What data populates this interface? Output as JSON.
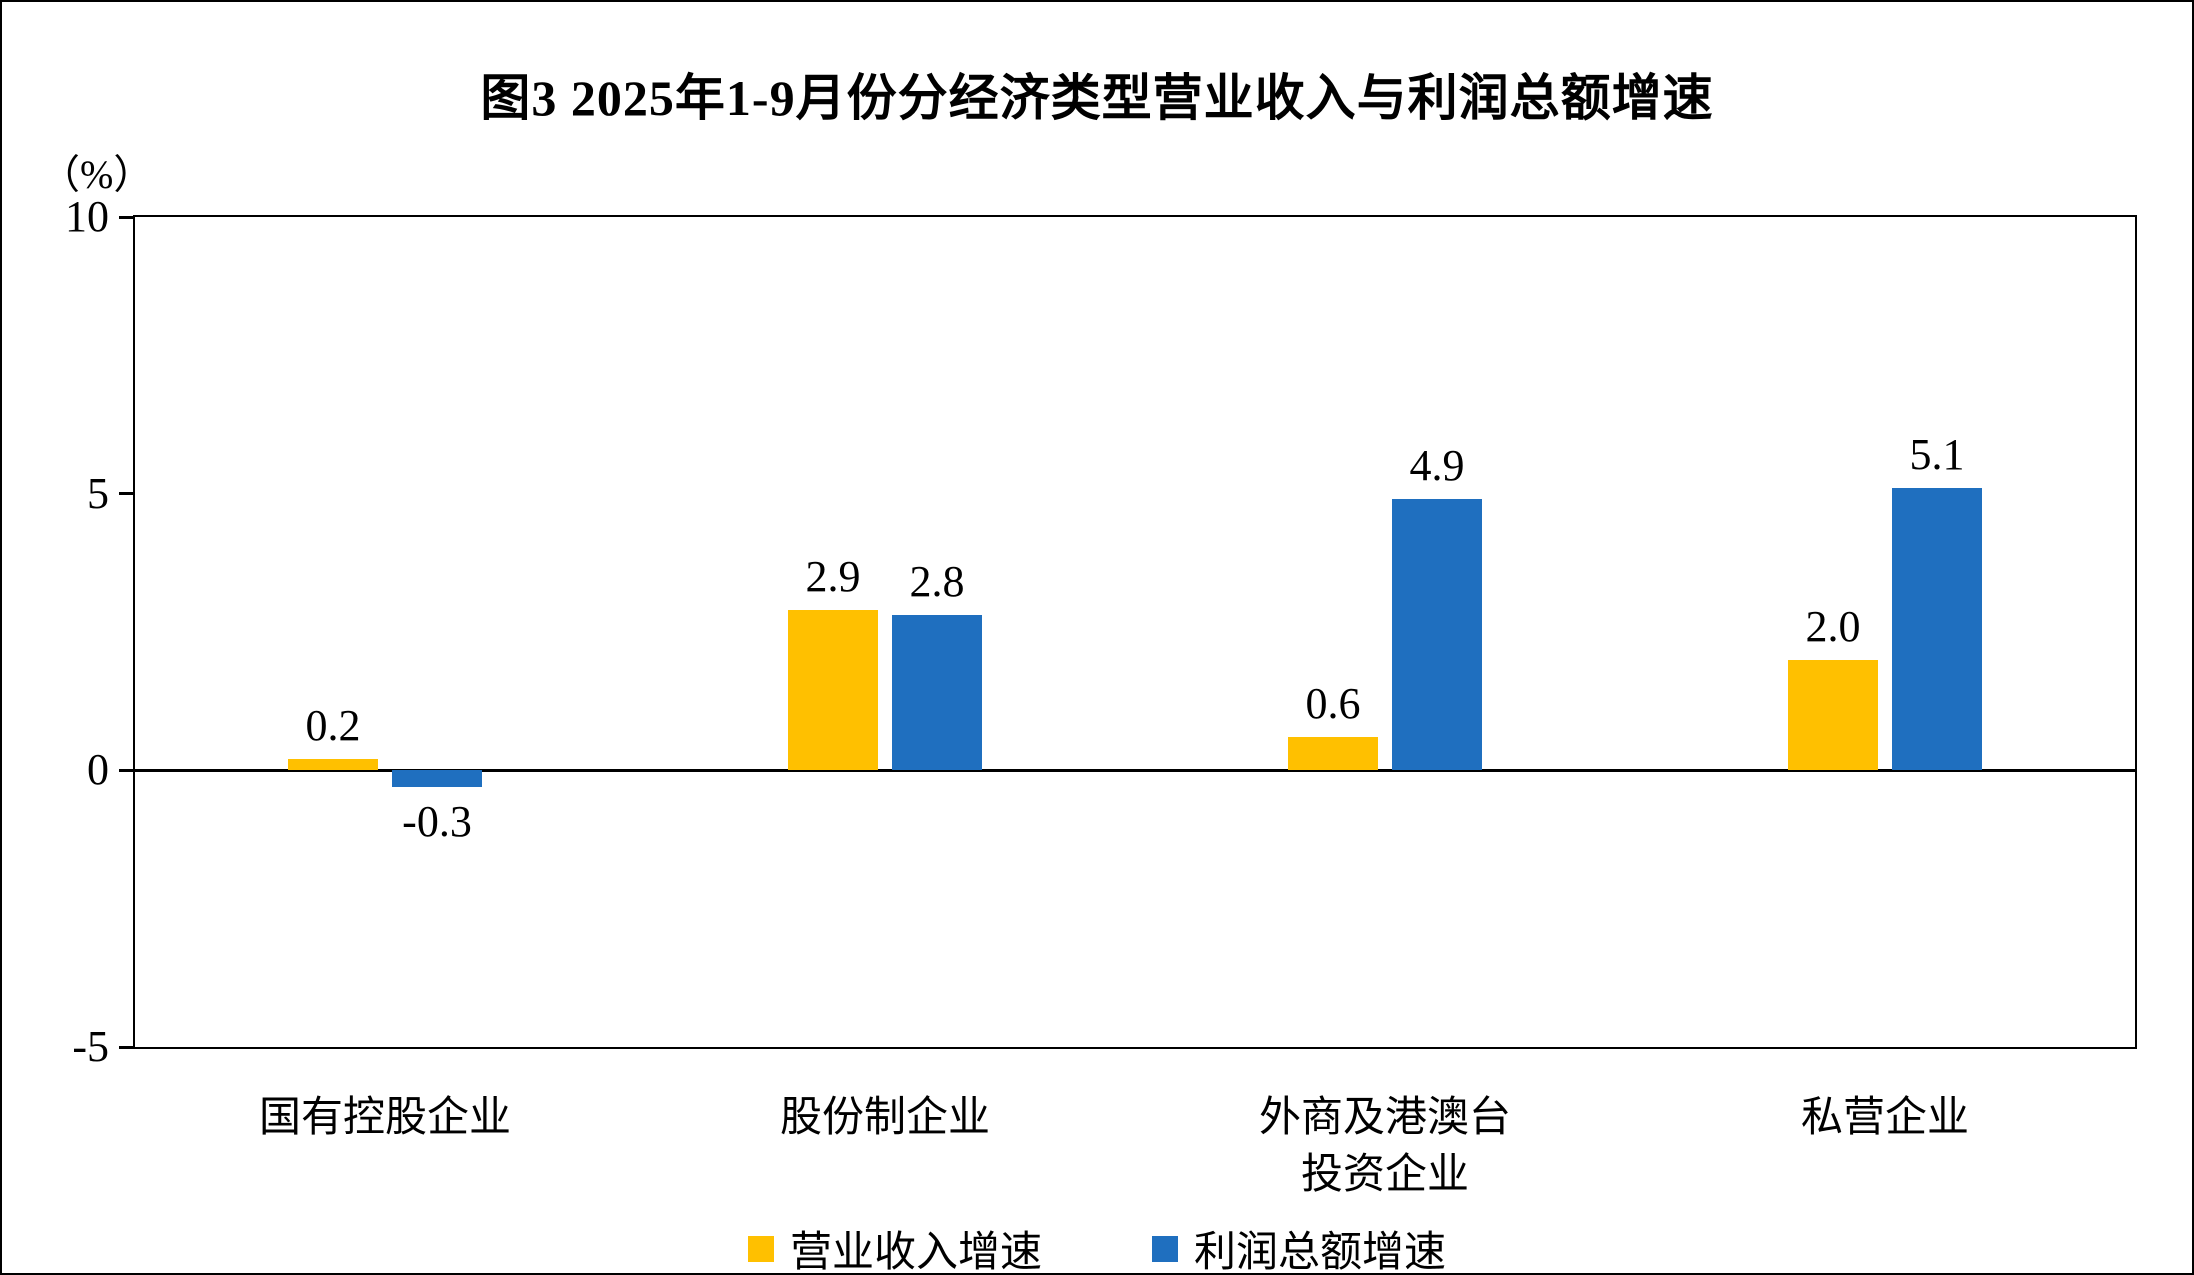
{
  "title": "图3  2025年1-9月份分经济类型营业收入与利润总额增速",
  "unit_label": "（%）",
  "chart_data": {
    "type": "bar",
    "categories": [
      "国有控股企业",
      "股份制企业",
      "外商及港澳台\n投资企业",
      "私营企业"
    ],
    "series": [
      {
        "name": "营业收入增速",
        "color": "#FFC000",
        "values": [
          0.2,
          2.9,
          0.6,
          2.0
        ]
      },
      {
        "name": "利润总额增速",
        "color": "#1F6FBF",
        "values": [
          -0.3,
          2.8,
          4.9,
          5.1
        ]
      }
    ],
    "ylim": [
      -5,
      10
    ],
    "yticks": [
      10,
      5,
      0,
      -5
    ],
    "grid": false,
    "legend_position": "bottom",
    "axis_color": "#000000",
    "background_color": "#FFFFFF"
  }
}
